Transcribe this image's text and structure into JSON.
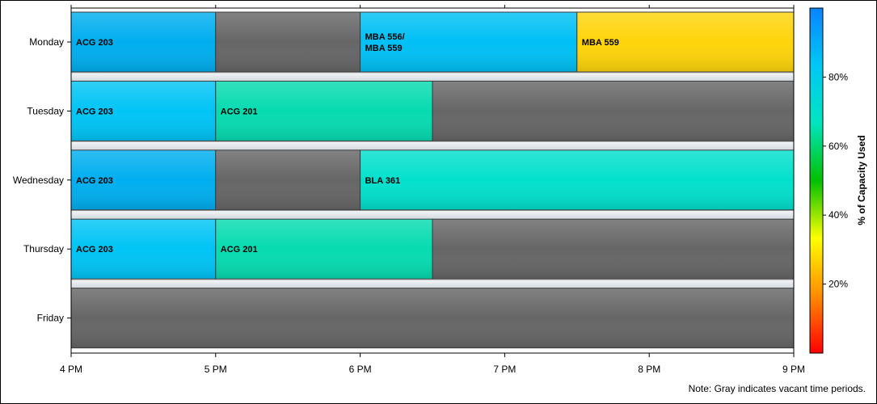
{
  "chart_data": {
    "type": "bar",
    "orientation": "horizontal",
    "x_axis": {
      "min_hour": 16,
      "max_hour": 21,
      "tick_labels": [
        "4 PM",
        "5 PM",
        "6 PM",
        "7 PM",
        "8 PM",
        "9 PM"
      ]
    },
    "days": [
      "Monday",
      "Tuesday",
      "Wednesday",
      "Thursday",
      "Friday"
    ],
    "bars": [
      {
        "day": "Monday",
        "start": 16,
        "end": 17,
        "label": "ACG 203",
        "color": "#00AEEF"
      },
      {
        "day": "Monday",
        "start": 17,
        "end": 18,
        "label": "",
        "color": "#666666"
      },
      {
        "day": "Monday",
        "start": 18,
        "end": 19.5,
        "label": "MBA 556/\nMBA 559",
        "color": "#00C0F5"
      },
      {
        "day": "Monday",
        "start": 19.5,
        "end": 21,
        "label": "MBA 559",
        "color": "#FED40A"
      },
      {
        "day": "Tuesday",
        "start": 16,
        "end": 17,
        "label": "ACG 203",
        "color": "#00C4F5"
      },
      {
        "day": "Tuesday",
        "start": 17,
        "end": 18.5,
        "label": "ACG 201",
        "color": "#06DBB0"
      },
      {
        "day": "Tuesday",
        "start": 18.5,
        "end": 21,
        "label": "",
        "color": "#666666"
      },
      {
        "day": "Wednesday",
        "start": 16,
        "end": 17,
        "label": "ACG 203",
        "color": "#00AEEF"
      },
      {
        "day": "Wednesday",
        "start": 17,
        "end": 18,
        "label": "",
        "color": "#666666"
      },
      {
        "day": "Wednesday",
        "start": 18,
        "end": 21,
        "label": "BLA 361",
        "color": "#02E0CC"
      },
      {
        "day": "Thursday",
        "start": 16,
        "end": 17,
        "label": "ACG 203",
        "color": "#00C4F5"
      },
      {
        "day": "Thursday",
        "start": 17,
        "end": 18.5,
        "label": "ACG 201",
        "color": "#06DBB0"
      },
      {
        "day": "Thursday",
        "start": 18.5,
        "end": 21,
        "label": "",
        "color": "#666666"
      },
      {
        "day": "Friday",
        "start": 16,
        "end": 21,
        "label": "",
        "color": "#666666"
      }
    ],
    "legend": {
      "title": "% of Capacity Used",
      "tick_values": [
        20,
        40,
        60,
        80
      ],
      "tick_labels": [
        "20%",
        "40%",
        "60%",
        "80%"
      ],
      "range": [
        0,
        100
      ],
      "gradient_colors": [
        "#FF0000",
        "#FF8C00",
        "#FFFF00",
        "#00C000",
        "#00E5C0",
        "#00C8F5",
        "#0A84FF"
      ]
    },
    "note": "Note: Gray indicates vacant time periods."
  }
}
